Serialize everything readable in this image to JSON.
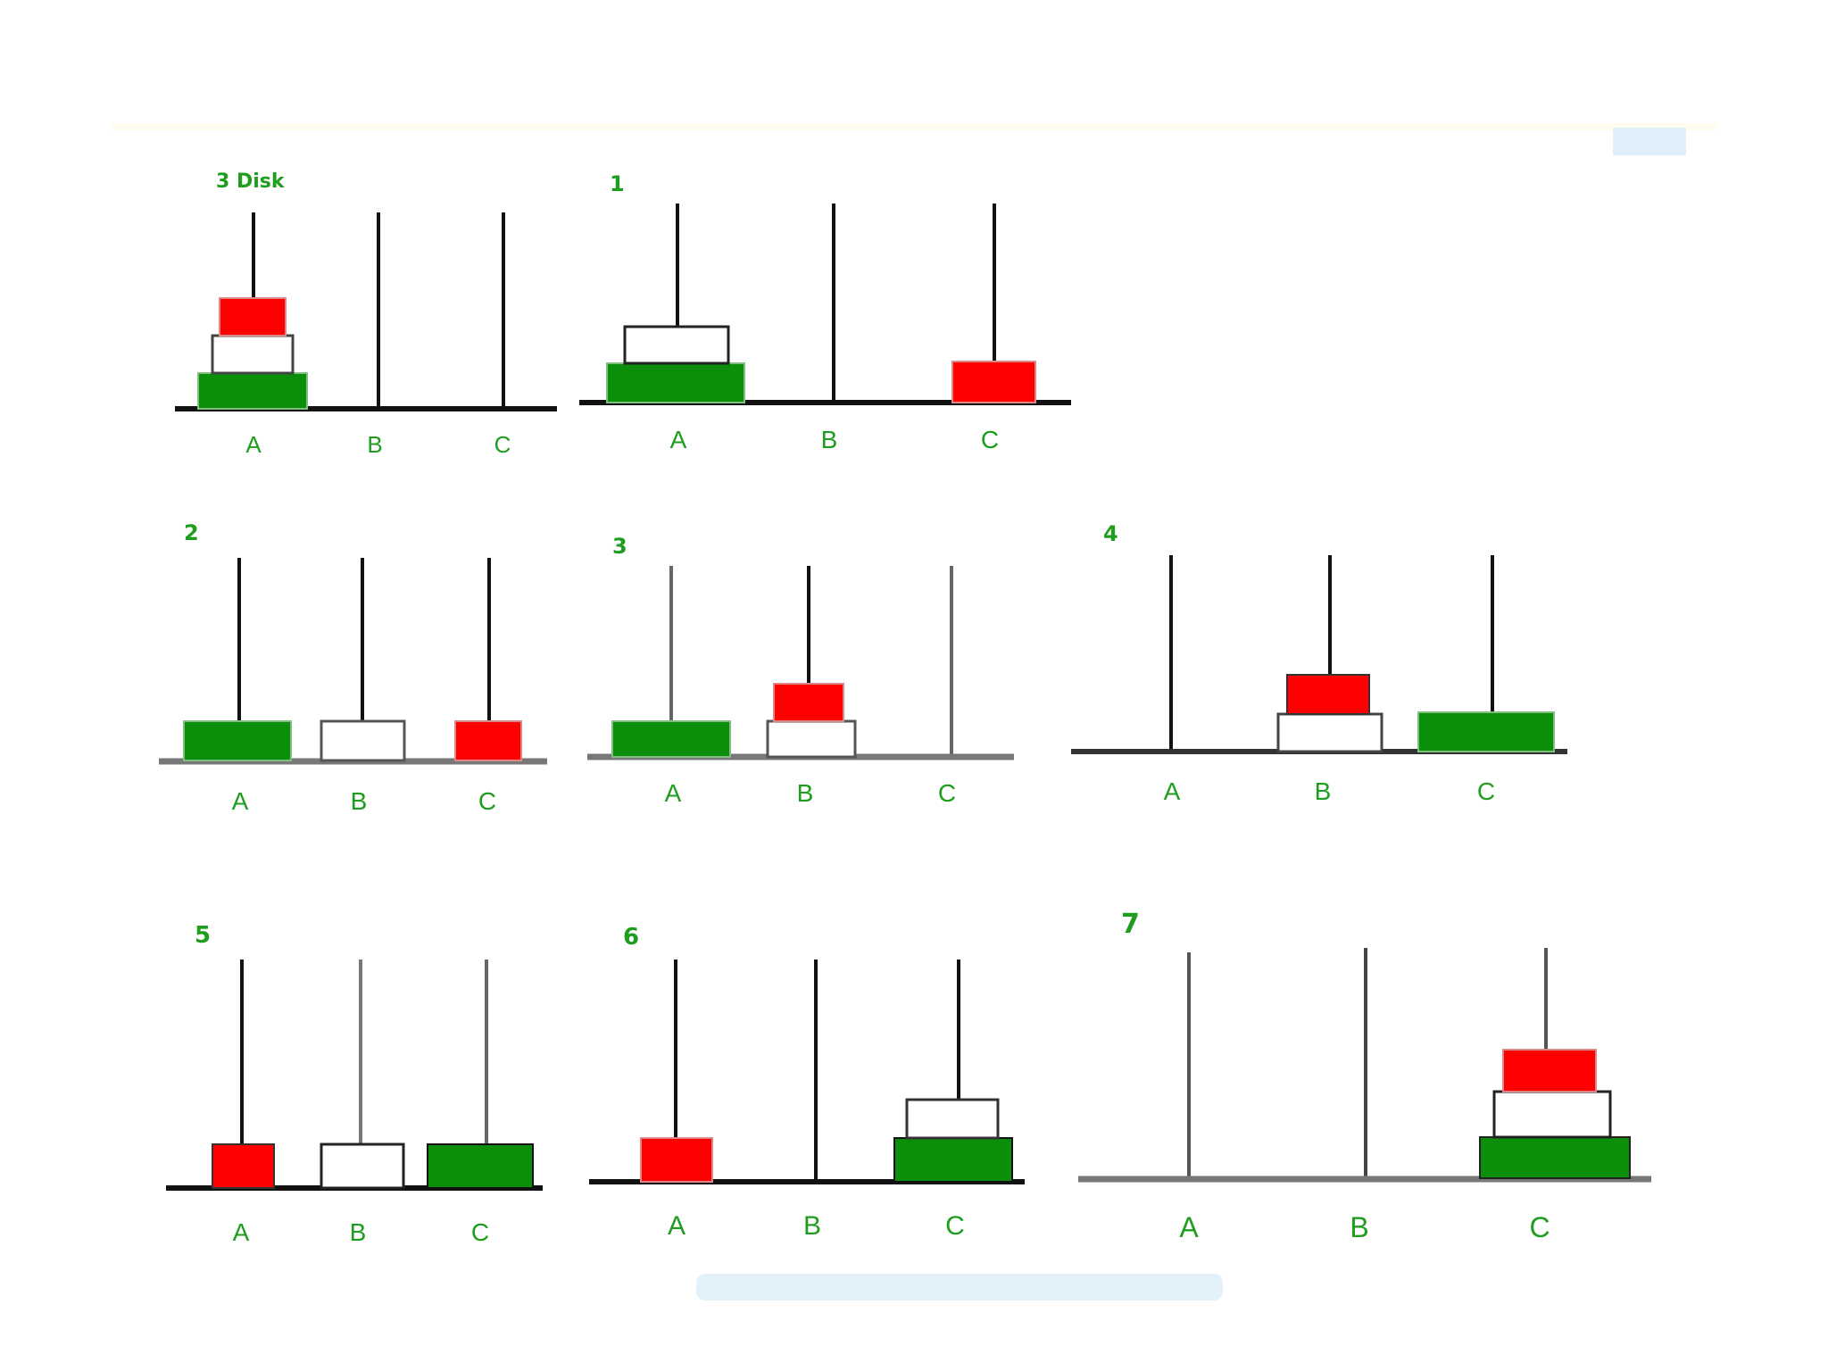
{
  "diagram": {
    "colors": {
      "disk_large": "#0b8f0b",
      "disk_medium": "#ffffff",
      "disk_small": "#ff0000",
      "text": "#1f9d1f",
      "line": "#111111"
    },
    "panels": [
      {
        "label": "3 Disk",
        "pegs": [
          "A",
          "B",
          "C"
        ],
        "stacks": {
          "A": [
            "large",
            "medium",
            "small"
          ],
          "B": [],
          "C": []
        }
      },
      {
        "label": "1",
        "pegs": [
          "A",
          "B",
          "C"
        ],
        "stacks": {
          "A": [
            "large",
            "medium"
          ],
          "B": [],
          "C": [
            "small"
          ]
        }
      },
      {
        "label": "2",
        "pegs": [
          "A",
          "B",
          "C"
        ],
        "stacks": {
          "A": [
            "large"
          ],
          "B": [
            "medium"
          ],
          "C": [
            "small"
          ]
        }
      },
      {
        "label": "3",
        "pegs": [
          "A",
          "B",
          "C"
        ],
        "stacks": {
          "A": [
            "large"
          ],
          "B": [
            "medium",
            "small"
          ],
          "C": []
        }
      },
      {
        "label": "4",
        "pegs": [
          "A",
          "B",
          "C"
        ],
        "stacks": {
          "A": [],
          "B": [
            "medium",
            "small"
          ],
          "C": [
            "large"
          ]
        }
      },
      {
        "label": "5",
        "pegs": [
          "A",
          "B",
          "C"
        ],
        "stacks": {
          "A": [
            "small"
          ],
          "B": [
            "medium"
          ],
          "C": [
            "large"
          ]
        }
      },
      {
        "label": "6",
        "pegs": [
          "A",
          "B",
          "C"
        ],
        "stacks": {
          "A": [
            "small"
          ],
          "B": [],
          "C": [
            "large",
            "medium"
          ]
        }
      },
      {
        "label": "7",
        "pegs": [
          "A",
          "B",
          "C"
        ],
        "stacks": {
          "A": [],
          "B": [],
          "C": [
            "large",
            "medium",
            "small"
          ]
        }
      }
    ]
  }
}
